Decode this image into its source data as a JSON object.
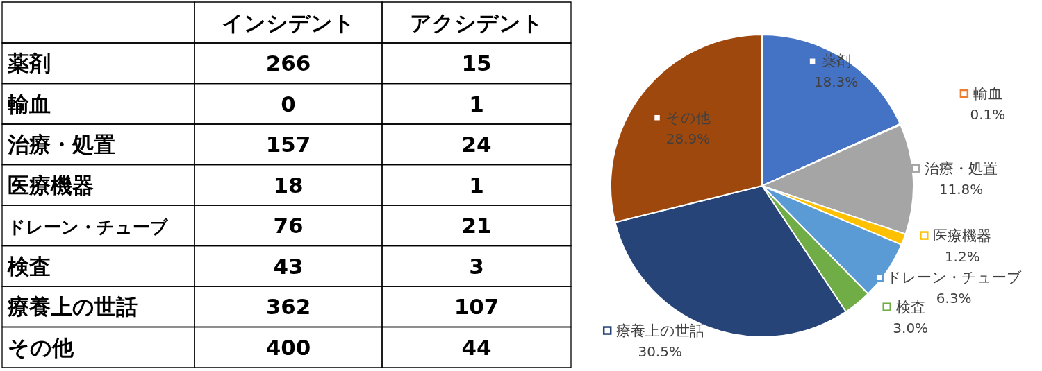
{
  "chart_data": [
    {
      "type": "heatmap",
      "categories": [
        "インシデント",
        "アクシデント"
      ],
      "y_categories": [
        "薬剤",
        "輸血",
        "治療・処置",
        "医療機器",
        "ドレーン・チューブ",
        "検査",
        "療養上の世話",
        "その他"
      ],
      "cells": [
        [
          266,
          15
        ],
        [
          0,
          1
        ],
        [
          157,
          24
        ],
        [
          18,
          1
        ],
        [
          76,
          21
        ],
        [
          43,
          3
        ],
        [
          362,
          107
        ],
        [
          400,
          44
        ]
      ],
      "data_labels": true
    },
    {
      "type": "pie",
      "categories": [
        "薬剤",
        "輸血",
        "治療・処置",
        "医療機器",
        "ドレーン・チューブ",
        "検査",
        "療養上の世話",
        "その他"
      ],
      "values": [
        18.3,
        0.1,
        11.8,
        1.2,
        6.3,
        3.0,
        30.5,
        28.9
      ],
      "legend": "right",
      "value_labels": [
        "18.3%",
        "0.1%",
        "11.8%",
        "1.2%",
        "6.3%",
        "3.0%",
        "30.5%",
        "28.9%"
      ],
      "colors": [
        "#4472c4",
        "#ed7d31",
        "#a5a5a5",
        "#ffc000",
        "#5b9bd5",
        "#70ad47",
        "#264478",
        "#9e480e"
      ]
    }
  ]
}
